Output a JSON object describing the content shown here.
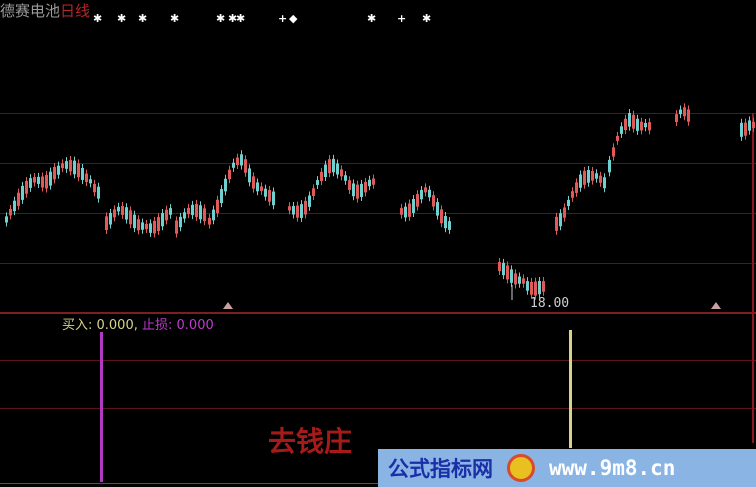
{
  "header": {
    "stock_name": "德赛电池",
    "period": "日线"
  },
  "main_chart": {
    "price_label": "18.00"
  },
  "indicator": {
    "buy_label": "买入: 0.000,",
    "stop_label": "止损: 0.000"
  },
  "watermark": {
    "logo": "去钱庄",
    "site_name": "公式指标网",
    "url": "www.9m8.cn"
  },
  "colors": {
    "grid": "#5a1518",
    "up": "#e05a5a",
    "down": "#6fd0d0",
    "buy": "#d8d28a",
    "stop": "#c23ad0"
  }
}
